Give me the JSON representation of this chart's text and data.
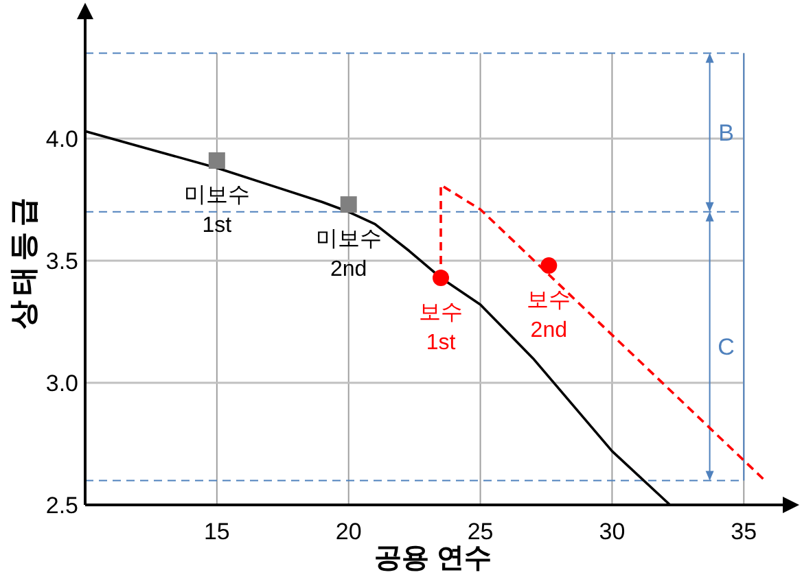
{
  "chart_data": {
    "type": "line",
    "xlabel": "공용  연수",
    "ylabel": "상태등급",
    "xlim": [
      10,
      37
    ],
    "ylim": [
      2.5,
      4.5
    ],
    "xticks": [
      15,
      20,
      25,
      30,
      35
    ],
    "yticks": [
      {
        "value": 2.5,
        "label": "2.5"
      },
      {
        "value": 3.0,
        "label": "3.0"
      },
      {
        "value": 3.5,
        "label": "3.5"
      },
      {
        "value": 4.0,
        "label": "4.0"
      }
    ],
    "grid": true,
    "series": [
      {
        "type": "line",
        "color": "#000000",
        "line_style": "solid",
        "marker": "none",
        "x": [
          10,
          12,
          15,
          17,
          19,
          20,
          21,
          22.3,
          23.5,
          25,
          27,
          30,
          32.2
        ],
        "values": [
          4.03,
          3.97,
          3.88,
          3.81,
          3.74,
          3.7,
          3.65,
          3.54,
          3.43,
          3.32,
          3.1,
          2.72,
          2.5
        ]
      },
      {
        "type": "line",
        "color": "#ff0000",
        "line_style": "dashed",
        "marker": "none",
        "x": [
          23.5,
          23.5,
          25,
          35.8
        ],
        "values": [
          3.43,
          3.81,
          3.71,
          2.6
        ]
      },
      {
        "type": "scatter",
        "color": "#808080",
        "marker": "square",
        "x": [
          15,
          20
        ],
        "values": [
          3.91,
          3.73
        ]
      },
      {
        "type": "scatter",
        "color": "#ff0000",
        "marker": "circle",
        "x": [
          23.5,
          27.6
        ],
        "values": [
          3.43,
          3.48
        ]
      }
    ],
    "annotations": [
      {
        "text": "미보수 1st",
        "x": 15,
        "y": 3.91
      },
      {
        "text": "미보수 2nd",
        "x": 20,
        "y": 3.73
      },
      {
        "text": "보수 1st",
        "x": 23.5,
        "y": 3.43
      },
      {
        "text": "보수 2nd",
        "x": 27.6,
        "y": 3.48
      },
      "B",
      "C"
    ],
    "ref_lines": [
      {
        "axis": "y",
        "value": 4.35,
        "color": "#4f81bd",
        "line_style": "dashed"
      },
      {
        "axis": "y",
        "value": 3.7,
        "color": "#4f81bd",
        "line_style": "dashed"
      },
      {
        "axis": "y",
        "value": 2.6,
        "color": "#4f81bd",
        "line_style": "dashed"
      },
      {
        "axis": "x",
        "value": 35,
        "color": "#4f81bd",
        "line_style": "solid"
      }
    ]
  }
}
